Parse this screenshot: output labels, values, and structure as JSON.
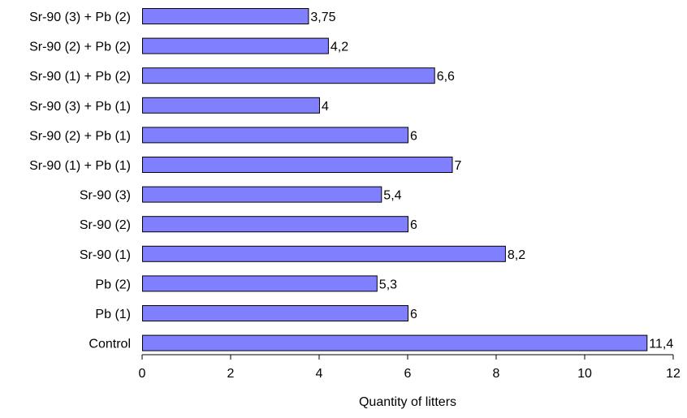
{
  "chart_data": {
    "type": "bar",
    "orientation": "horizontal",
    "title": "",
    "xlabel": "Quantity of litters",
    "ylabel": "",
    "xlim": [
      0,
      12
    ],
    "x_ticks": [
      0,
      2,
      4,
      6,
      8,
      10,
      12
    ],
    "grid": false,
    "legend": "none",
    "bar_color": "#8080ff",
    "bar_edge_color": "#000000",
    "categories": [
      "Sr-90 (3) + Pb (2)",
      "Sr-90 (2) + Pb (2)",
      "Sr-90 (1) + Pb (2)",
      "Sr-90 (3) + Pb (1)",
      "Sr-90 (2) + Pb (1)",
      "Sr-90 (1) + Pb (1)",
      "Sr-90 (3)",
      "Sr-90 (2)",
      "Sr-90 (1)",
      "Pb (2)",
      "Pb (1)",
      "Control"
    ],
    "values": [
      3.75,
      4.2,
      6.6,
      4,
      6,
      7,
      5.4,
      6,
      8.2,
      5.3,
      6,
      11.4
    ],
    "value_labels": [
      "3,75",
      "4,2",
      "6,6",
      "4",
      "6",
      "7",
      "5,4",
      "6",
      "8,2",
      "5,3",
      "6",
      "11,4"
    ]
  }
}
